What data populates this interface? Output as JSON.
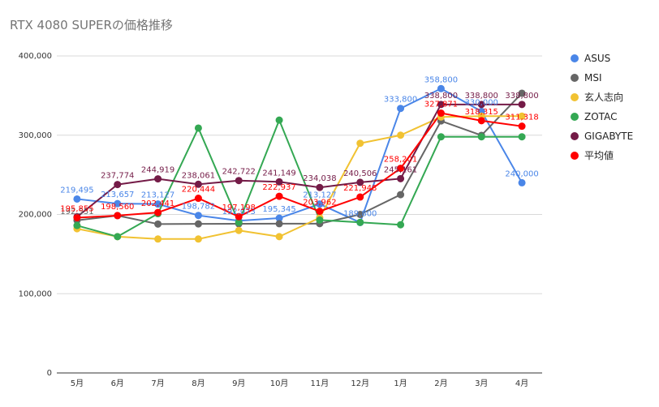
{
  "chart_data": {
    "type": "line",
    "title": "RTX 4080 SUPERの価格推移",
    "xlabel": "",
    "ylabel": "",
    "categories": [
      "5月",
      "6月",
      "7月",
      "8月",
      "9月",
      "10月",
      "11月",
      "12月",
      "1月",
      "2月",
      "3月",
      "4月"
    ],
    "ylim": [
      0,
      400000
    ],
    "yticks": [
      0,
      100000,
      200000,
      300000,
      400000
    ],
    "ytick_labels": [
      "0",
      "100,000",
      "200,000",
      "300,000",
      "400,000"
    ],
    "grid": true,
    "legend_position": "right",
    "series": [
      {
        "name": "ASUS",
        "color": "#4a86e8",
        "values": [
          219495,
          213657,
          213127,
          198782,
          192073,
          195345,
          213127,
          189800,
          333800,
          358800,
          330000,
          240000
        ],
        "labels": [
          "219,495",
          "213,657",
          "213,127",
          "198,782",
          "192,073",
          "195,345",
          "213,127",
          "189,800",
          "333,800",
          "358,800",
          "330,000",
          "240,000"
        ]
      },
      {
        "name": "MSI",
        "color": "#666666",
        "values": [
          192551,
          198560,
          187900,
          188100,
          188200,
          188300,
          188400,
          200000,
          225000,
          318000,
          299800,
          353000
        ],
        "labels": [
          "192,551",
          "",
          "",
          "",
          "",
          "",
          "",
          "",
          "",
          "",
          "",
          ""
        ]
      },
      {
        "name": "玄人志向",
        "color": "#f1c232",
        "values": [
          182000,
          172000,
          169000,
          169000,
          179800,
          172000,
          195800,
          289800,
          300000,
          323000,
          324000,
          324000
        ],
        "labels": [
          "",
          "",
          "",
          "",
          "",
          "",
          "",
          "",
          "",
          "",
          "",
          ""
        ]
      },
      {
        "name": "ZOTAC",
        "color": "#34a853",
        "values": [
          186000,
          172000,
          201000,
          309000,
          190000,
          319000,
          193000,
          190000,
          187000,
          298000,
          298000,
          298000
        ],
        "labels": [
          "",
          "",
          "",
          "",
          "",
          "",
          "",
          "",
          "",
          "",
          "",
          ""
        ]
      },
      {
        "name": "GIGABYTE",
        "color": "#741b47",
        "values": [
          197000,
          237774,
          244919,
          238061,
          242722,
          241149,
          234038,
          240506,
          245161,
          338800,
          338800,
          338800
        ],
        "labels": [
          "",
          "237,774",
          "244,919",
          "238,061",
          "242,722",
          "241,149",
          "234,038",
          "240,506",
          "245,161",
          "338,800",
          "338,800",
          "338,800"
        ]
      },
      {
        "name": "平均値",
        "color": "#ff0000",
        "values": [
          195855,
          198560,
          202441,
          220444,
          197198,
          222937,
          203962,
          221948,
          258201,
          327871,
          318315,
          311318
        ],
        "labels": [
          "195,855",
          "198,560",
          "202,441",
          "220,444",
          "197,198",
          "222,937",
          "203,962",
          "221,948",
          "258,201",
          "327,871",
          "318,315",
          "311,318"
        ]
      }
    ]
  }
}
